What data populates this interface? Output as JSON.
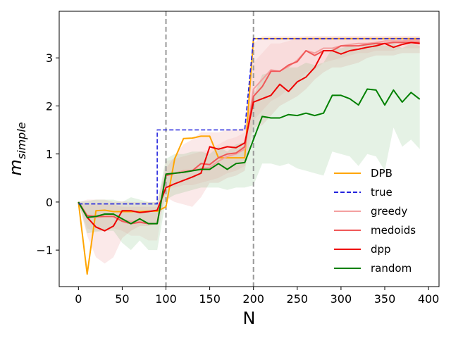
{
  "chart_data": {
    "type": "line",
    "xlabel": "N",
    "ylabel_main": "m",
    "ylabel_sub": "simple",
    "xlim": [
      -22,
      412
    ],
    "ylim": [
      -1.76,
      3.97
    ],
    "xticks": [
      0,
      50,
      100,
      150,
      200,
      250,
      300,
      350,
      400
    ],
    "yticks": [
      -1,
      0,
      1,
      2,
      3
    ],
    "vlines": [
      100,
      200
    ],
    "legend_position": "lower right",
    "series": [
      {
        "name": "DPB",
        "color": "#ffa500",
        "style": "solid",
        "x": [
          0,
          10,
          20,
          30,
          40,
          50,
          60,
          70,
          80,
          90,
          100,
          110,
          120,
          130,
          140,
          150,
          160,
          170,
          180,
          190,
          200,
          210,
          220,
          230,
          240,
          250,
          260,
          270,
          280,
          290,
          300,
          310,
          320,
          330,
          340,
          350,
          360,
          370,
          380,
          390
        ],
        "y": [
          0,
          -1.5,
          -0.18,
          -0.17,
          -0.2,
          -0.2,
          -0.2,
          -0.2,
          -0.19,
          -0.19,
          -0.1,
          0.9,
          1.32,
          1.33,
          1.37,
          1.37,
          0.92,
          0.92,
          0.92,
          0.92,
          3.4,
          3.4,
          3.4,
          3.4,
          3.4,
          3.4,
          3.4,
          3.4,
          3.4,
          3.4,
          3.4,
          3.4,
          3.4,
          3.4,
          3.4,
          3.4,
          3.4,
          3.4,
          3.4,
          3.4
        ]
      },
      {
        "name": "true",
        "color": "#2222dd",
        "style": "dashed",
        "x": [
          0,
          10,
          20,
          30,
          40,
          50,
          60,
          70,
          80,
          90,
          90,
          100,
          110,
          120,
          130,
          140,
          150,
          160,
          170,
          180,
          190,
          190,
          200,
          210,
          220,
          230,
          240,
          250,
          260,
          270,
          280,
          290,
          300,
          310,
          320,
          330,
          340,
          350,
          360,
          370,
          380,
          390
        ],
        "y": [
          -0.04,
          -0.04,
          -0.04,
          -0.04,
          -0.04,
          -0.04,
          -0.04,
          -0.04,
          -0.04,
          -0.04,
          1.5,
          1.5,
          1.5,
          1.5,
          1.5,
          1.5,
          1.5,
          1.5,
          1.5,
          1.5,
          1.5,
          1.5,
          3.4,
          3.4,
          3.4,
          3.4,
          3.4,
          3.4,
          3.4,
          3.4,
          3.4,
          3.4,
          3.4,
          3.4,
          3.4,
          3.4,
          3.4,
          3.4,
          3.4,
          3.4,
          3.4,
          3.4
        ]
      },
      {
        "name": "greedy",
        "color": "#f4a0a0",
        "style": "solid",
        "x": [
          0,
          10,
          20,
          30,
          40,
          50,
          60,
          70,
          80,
          90,
          100,
          110,
          120,
          130,
          140,
          150,
          160,
          170,
          180,
          190,
          200,
          210,
          220,
          230,
          240,
          250,
          260,
          270,
          280,
          290,
          300,
          310,
          320,
          330,
          340,
          350,
          360,
          370,
          380,
          390
        ],
        "y": [
          0,
          -0.3,
          -0.32,
          -0.3,
          -0.3,
          -0.38,
          -0.4,
          -0.4,
          -0.45,
          -0.45,
          0.58,
          0.6,
          0.65,
          0.66,
          0.7,
          0.72,
          0.85,
          0.95,
          1.0,
          1.1,
          2.35,
          2.55,
          2.75,
          2.72,
          2.82,
          2.95,
          3.15,
          3.1,
          3.2,
          3.2,
          3.25,
          3.28,
          3.3,
          3.3,
          3.32,
          3.35,
          3.35,
          3.35,
          3.37,
          3.37
        ]
      },
      {
        "name": "medoids",
        "color": "#f05858",
        "style": "solid",
        "x": [
          0,
          10,
          20,
          30,
          40,
          50,
          60,
          70,
          80,
          90,
          100,
          110,
          120,
          130,
          140,
          150,
          160,
          170,
          180,
          190,
          200,
          210,
          220,
          230,
          240,
          250,
          260,
          270,
          280,
          290,
          300,
          310,
          320,
          330,
          340,
          350,
          360,
          370,
          380,
          390
        ],
        "y": [
          0,
          -0.28,
          -0.3,
          -0.3,
          -0.3,
          -0.4,
          -0.45,
          -0.42,
          -0.45,
          -0.45,
          0.55,
          0.6,
          0.62,
          0.65,
          0.8,
          0.78,
          0.92,
          1.0,
          1.02,
          1.15,
          2.2,
          2.4,
          2.72,
          2.72,
          2.85,
          2.92,
          3.15,
          3.05,
          3.15,
          3.15,
          3.25,
          3.25,
          3.25,
          3.28,
          3.3,
          3.3,
          3.32,
          3.32,
          3.33,
          3.33
        ]
      },
      {
        "name": "dpp",
        "color": "#ee0000",
        "style": "solid",
        "x": [
          0,
          10,
          20,
          30,
          40,
          50,
          60,
          70,
          80,
          90,
          100,
          110,
          120,
          130,
          140,
          150,
          160,
          170,
          180,
          190,
          200,
          210,
          220,
          230,
          240,
          250,
          260,
          270,
          280,
          290,
          300,
          310,
          320,
          330,
          340,
          350,
          360,
          370,
          380,
          390
        ],
        "y": [
          0,
          -0.32,
          -0.52,
          -0.6,
          -0.5,
          -0.18,
          -0.18,
          -0.22,
          -0.2,
          -0.17,
          0.3,
          0.38,
          0.45,
          0.52,
          0.6,
          1.15,
          1.1,
          1.15,
          1.13,
          1.23,
          2.08,
          2.15,
          2.22,
          2.45,
          2.3,
          2.5,
          2.6,
          2.8,
          3.15,
          3.15,
          3.08,
          3.15,
          3.18,
          3.22,
          3.25,
          3.3,
          3.22,
          3.28,
          3.32,
          3.3
        ]
      },
      {
        "name": "random",
        "color": "#008000",
        "style": "solid",
        "x": [
          0,
          10,
          20,
          30,
          40,
          50,
          60,
          70,
          80,
          90,
          100,
          110,
          120,
          130,
          140,
          150,
          160,
          170,
          180,
          190,
          200,
          210,
          220,
          230,
          240,
          250,
          260,
          270,
          280,
          290,
          300,
          310,
          320,
          330,
          340,
          350,
          360,
          370,
          380,
          390
        ],
        "y": [
          0,
          -0.32,
          -0.3,
          -0.25,
          -0.25,
          -0.35,
          -0.45,
          -0.35,
          -0.45,
          -0.45,
          0.58,
          0.6,
          0.62,
          0.65,
          0.68,
          0.68,
          0.8,
          0.68,
          0.8,
          0.82,
          1.3,
          1.78,
          1.75,
          1.75,
          1.82,
          1.8,
          1.85,
          1.8,
          1.85,
          2.22,
          2.22,
          2.15,
          2.02,
          2.35,
          2.33,
          2.02,
          2.33,
          2.08,
          2.28,
          2.14
        ]
      }
    ],
    "bands": [
      {
        "color": "#e06060",
        "opacity": 0.14,
        "x": [
          0,
          10,
          20,
          30,
          40,
          50,
          60,
          70,
          80,
          90,
          100,
          110,
          120,
          130,
          140,
          150,
          160,
          170,
          180,
          190,
          200,
          210,
          220,
          230,
          240,
          250,
          260,
          270,
          280,
          290,
          300,
          310,
          320,
          330,
          340,
          350,
          360,
          370,
          380,
          390
        ],
        "lo": [
          0,
          -0.7,
          -1.15,
          -1.28,
          -1.15,
          -0.75,
          -0.6,
          -0.5,
          -0.5,
          -0.45,
          0.1,
          0.0,
          -0.05,
          -0.1,
          0.1,
          0.4,
          0.4,
          0.5,
          0.55,
          0.65,
          1.55,
          1.6,
          1.8,
          2.0,
          2.1,
          2.2,
          2.35,
          2.55,
          2.7,
          2.8,
          2.8,
          2.85,
          2.9,
          3.0,
          3.05,
          3.05,
          3.05,
          3.1,
          3.1,
          3.1
        ],
        "hi": [
          0,
          0.05,
          0.05,
          0.05,
          0.0,
          0.02,
          0.0,
          0.0,
          0.0,
          0.0,
          0.7,
          0.95,
          1.2,
          1.3,
          1.45,
          1.45,
          1.45,
          1.5,
          1.5,
          1.55,
          3.3,
          3.45,
          3.45,
          3.45,
          3.45,
          3.45,
          3.45,
          3.45,
          3.45,
          3.45,
          3.45,
          3.45,
          3.45,
          3.45,
          3.45,
          3.45,
          3.45,
          3.45,
          3.45,
          3.45
        ]
      },
      {
        "color": "#f08080",
        "opacity": 0.12,
        "x": [
          0,
          10,
          20,
          30,
          40,
          50,
          60,
          70,
          80,
          90,
          100,
          110,
          120,
          130,
          140,
          150,
          160,
          170,
          180,
          190,
          200,
          210,
          220,
          230,
          240,
          250,
          260,
          270,
          280,
          290,
          300,
          310,
          320,
          330,
          340,
          350,
          360,
          370,
          380,
          390
        ],
        "lo": [
          0,
          -0.55,
          -0.6,
          -0.6,
          -0.55,
          -0.6,
          -0.7,
          -0.7,
          -0.8,
          -0.8,
          0.3,
          0.3,
          0.35,
          0.35,
          0.4,
          0.45,
          0.5,
          0.6,
          0.65,
          0.75,
          1.7,
          1.9,
          2.1,
          2.2,
          2.35,
          2.5,
          2.7,
          2.75,
          2.9,
          2.95,
          3.0,
          3.05,
          3.1,
          3.1,
          3.15,
          3.15,
          3.15,
          3.2,
          3.2,
          3.2
        ],
        "hi": [
          0,
          -0.05,
          -0.05,
          -0.05,
          -0.05,
          -0.1,
          -0.1,
          -0.1,
          -0.1,
          -0.1,
          0.85,
          0.9,
          0.95,
          1.0,
          1.05,
          1.1,
          1.2,
          1.3,
          1.35,
          1.45,
          2.9,
          3.1,
          3.3,
          3.3,
          3.35,
          3.4,
          3.45,
          3.45,
          3.45,
          3.45,
          3.45,
          3.45,
          3.45,
          3.45,
          3.45,
          3.45,
          3.45,
          3.45,
          3.45,
          3.45
        ]
      },
      {
        "color": "#60b060",
        "opacity": 0.16,
        "x": [
          0,
          10,
          20,
          30,
          40,
          50,
          60,
          70,
          80,
          90,
          100,
          110,
          120,
          130,
          140,
          150,
          160,
          170,
          180,
          190,
          200,
          210,
          220,
          230,
          240,
          250,
          260,
          270,
          280,
          290,
          300,
          310,
          320,
          330,
          340,
          350,
          360,
          370,
          380,
          390
        ],
        "lo": [
          0,
          -0.65,
          -0.62,
          -0.6,
          -0.6,
          -0.85,
          -1.0,
          -0.8,
          -1.0,
          -1.0,
          0.05,
          0.15,
          0.2,
          0.25,
          0.3,
          0.3,
          0.3,
          0.25,
          0.3,
          0.3,
          0.35,
          0.8,
          0.8,
          0.75,
          0.8,
          0.7,
          0.65,
          0.6,
          0.55,
          1.05,
          1.0,
          0.95,
          0.75,
          1.0,
          0.95,
          0.65,
          1.55,
          1.15,
          1.3,
          1.1
        ],
        "hi": [
          0,
          0.02,
          0.05,
          0.05,
          0.05,
          0.0,
          0.1,
          0.05,
          0.0,
          0.0,
          0.9,
          1.0,
          1.0,
          1.05,
          1.05,
          1.0,
          1.15,
          1.05,
          1.2,
          1.25,
          2.2,
          2.65,
          2.7,
          2.7,
          2.8,
          2.8,
          2.9,
          2.85,
          2.9,
          3.2,
          3.2,
          3.25,
          3.2,
          3.3,
          3.3,
          3.25,
          3.3,
          3.2,
          3.3,
          3.25
        ]
      }
    ]
  }
}
